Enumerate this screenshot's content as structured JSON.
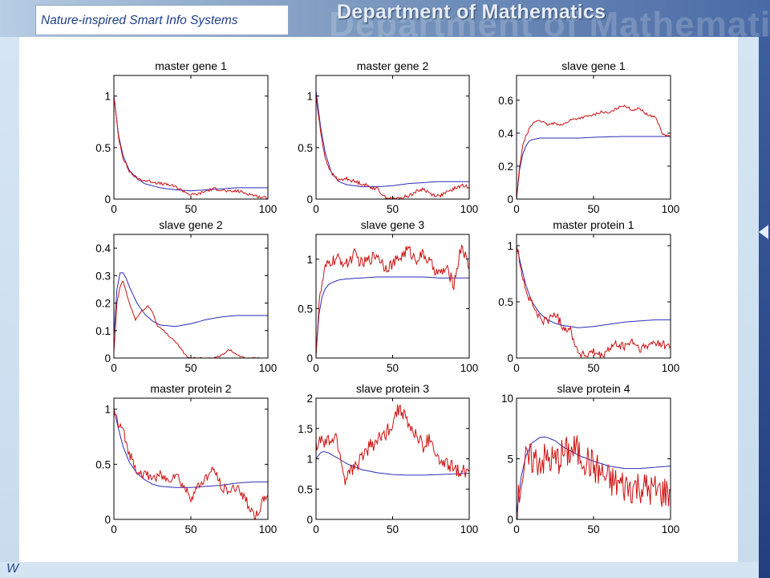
{
  "header": {
    "logo_text": "Nature-inspired Smart Info Systems",
    "department_title": "Department of Mathematics",
    "department_ghost_text": "Department of Mathematics"
  },
  "footer": {
    "fragment": "W"
  },
  "colors": {
    "simulation": "#cc1111",
    "model": "#2b2bb8",
    "axes": "#000000"
  },
  "nav": {
    "icon": "left-arrow-icon"
  },
  "chart_data": [
    {
      "type": "line",
      "title": "master gene 1",
      "xlim": [
        0,
        100
      ],
      "ylim": [
        0,
        1.2
      ],
      "xticks": [
        "0",
        "50",
        "100"
      ],
      "yticks": [
        [
          0,
          "0"
        ],
        [
          0.5,
          "0.5"
        ],
        [
          1,
          "1"
        ]
      ],
      "series": [
        {
          "color": "#2b2bb8",
          "x": [
            0,
            3,
            6,
            10,
            15,
            20,
            30,
            40,
            50,
            60,
            70,
            80,
            90,
            100
          ],
          "values": [
            1.0,
            0.62,
            0.42,
            0.28,
            0.2,
            0.15,
            0.11,
            0.09,
            0.08,
            0.09,
            0.1,
            0.11,
            0.11,
            0.11
          ]
        },
        {
          "color": "#cc1111",
          "x": [
            0,
            3,
            6,
            10,
            15,
            20,
            25,
            30,
            35,
            40,
            45,
            50,
            55,
            60,
            65,
            70,
            75,
            80,
            85,
            90,
            95,
            100
          ],
          "values": [
            1.0,
            0.6,
            0.4,
            0.27,
            0.2,
            0.18,
            0.17,
            0.15,
            0.14,
            0.12,
            0.08,
            0.04,
            0.05,
            0.08,
            0.1,
            0.09,
            0.07,
            0.08,
            0.06,
            0.04,
            0.02,
            0.01
          ],
          "noise": 0.01
        }
      ]
    },
    {
      "type": "line",
      "title": "master gene 2",
      "xlim": [
        0,
        100
      ],
      "ylim": [
        0,
        1.2
      ],
      "xticks": [
        "0",
        "50",
        "100"
      ],
      "yticks": [
        [
          0,
          "0"
        ],
        [
          0.5,
          "0.5"
        ],
        [
          1,
          "1"
        ]
      ],
      "series": [
        {
          "color": "#2b2bb8",
          "x": [
            0,
            3,
            6,
            10,
            15,
            20,
            30,
            40,
            50,
            60,
            70,
            80,
            90,
            100
          ],
          "values": [
            1.05,
            0.7,
            0.45,
            0.26,
            0.17,
            0.14,
            0.12,
            0.12,
            0.13,
            0.15,
            0.16,
            0.17,
            0.17,
            0.17
          ]
        },
        {
          "color": "#cc1111",
          "x": [
            0,
            3,
            6,
            10,
            15,
            20,
            25,
            30,
            35,
            40,
            45,
            50,
            55,
            60,
            65,
            70,
            75,
            80,
            85,
            90,
            95,
            100
          ],
          "values": [
            1.0,
            0.65,
            0.4,
            0.25,
            0.18,
            0.2,
            0.17,
            0.15,
            0.12,
            0.1,
            0.02,
            0.0,
            0.01,
            0.03,
            0.07,
            0.1,
            0.05,
            0.03,
            0.06,
            0.1,
            0.13,
            0.12
          ],
          "noise": 0.012
        }
      ]
    },
    {
      "type": "line",
      "title": "slave gene 1",
      "xlim": [
        0,
        100
      ],
      "ylim": [
        0,
        0.75
      ],
      "xticks": [
        "0",
        "50",
        "100"
      ],
      "yticks": [
        [
          0,
          "0"
        ],
        [
          0.2,
          "0.2"
        ],
        [
          0.4,
          "0.4"
        ],
        [
          0.6,
          "0.6"
        ]
      ],
      "series": [
        {
          "color": "#2b2bb8",
          "x": [
            0,
            2,
            4,
            6,
            8,
            10,
            15,
            20,
            30,
            40,
            50,
            60,
            70,
            80,
            90,
            100
          ],
          "values": [
            0,
            0.18,
            0.27,
            0.32,
            0.35,
            0.36,
            0.37,
            0.37,
            0.37,
            0.37,
            0.375,
            0.378,
            0.38,
            0.38,
            0.38,
            0.38
          ]
        },
        {
          "color": "#cc1111",
          "x": [
            0,
            2,
            4,
            6,
            8,
            10,
            12,
            15,
            20,
            25,
            30,
            35,
            40,
            45,
            50,
            55,
            60,
            65,
            70,
            75,
            80,
            85,
            90,
            93,
            95,
            100
          ],
          "values": [
            0,
            0.2,
            0.32,
            0.38,
            0.42,
            0.45,
            0.47,
            0.48,
            0.45,
            0.46,
            0.45,
            0.48,
            0.49,
            0.5,
            0.51,
            0.53,
            0.52,
            0.55,
            0.57,
            0.54,
            0.55,
            0.51,
            0.5,
            0.44,
            0.39,
            0.38
          ],
          "noise": 0.008
        }
      ]
    },
    {
      "type": "line",
      "title": "slave gene 2",
      "xlim": [
        0,
        100
      ],
      "ylim": [
        0,
        0.45
      ],
      "xticks": [
        "0",
        "50",
        "100"
      ],
      "yticks": [
        [
          0,
          "0"
        ],
        [
          0.1,
          "0.1"
        ],
        [
          0.2,
          "0.2"
        ],
        [
          0.3,
          "0.3"
        ],
        [
          0.4,
          "0.4"
        ]
      ],
      "series": [
        {
          "color": "#2b2bb8",
          "x": [
            0,
            2,
            4,
            6,
            8,
            10,
            15,
            20,
            25,
            30,
            40,
            50,
            60,
            70,
            80,
            90,
            100
          ],
          "values": [
            0.08,
            0.25,
            0.31,
            0.31,
            0.29,
            0.26,
            0.2,
            0.16,
            0.135,
            0.12,
            0.115,
            0.125,
            0.14,
            0.15,
            0.155,
            0.155,
            0.155
          ]
        },
        {
          "color": "#cc1111",
          "x": [
            0,
            2,
            4,
            6,
            8,
            10,
            14,
            18,
            22,
            25,
            28,
            32,
            36,
            40,
            44,
            48,
            50,
            55,
            60,
            65,
            70,
            72,
            75,
            78,
            80,
            85,
            90,
            95,
            100
          ],
          "values": [
            0.02,
            0.2,
            0.26,
            0.28,
            0.24,
            0.2,
            0.14,
            0.17,
            0.19,
            0.17,
            0.12,
            0.1,
            0.08,
            0.06,
            0.03,
            0.0,
            0.0,
            0.0,
            0.0,
            0.0,
            0.01,
            0.02,
            0.03,
            0.02,
            0.01,
            0.0,
            0.0,
            0.0,
            0.0
          ],
          "noise": 0.006
        }
      ]
    },
    {
      "type": "line",
      "title": "slave gene 3",
      "xlim": [
        0,
        100
      ],
      "ylim": [
        0,
        1.25
      ],
      "xticks": [
        "0",
        "50",
        "100"
      ],
      "yticks": [
        [
          0,
          "0"
        ],
        [
          0.5,
          "0.5"
        ],
        [
          1,
          "1"
        ]
      ],
      "series": [
        {
          "color": "#2b2bb8",
          "x": [
            0,
            2,
            4,
            6,
            8,
            10,
            15,
            20,
            30,
            40,
            50,
            60,
            70,
            80,
            90,
            100
          ],
          "values": [
            0.05,
            0.45,
            0.62,
            0.7,
            0.74,
            0.76,
            0.79,
            0.8,
            0.81,
            0.82,
            0.82,
            0.82,
            0.82,
            0.81,
            0.81,
            0.81
          ]
        },
        {
          "color": "#cc1111",
          "x": [
            0,
            2,
            4,
            6,
            8,
            10,
            15,
            20,
            25,
            30,
            35,
            40,
            45,
            50,
            55,
            60,
            65,
            70,
            75,
            80,
            85,
            90,
            95,
            98,
            100
          ],
          "values": [
            0.05,
            0.55,
            0.75,
            0.9,
            0.95,
            0.98,
            1.0,
            0.95,
            1.05,
            0.95,
            1.0,
            1.05,
            0.92,
            0.95,
            1.02,
            1.1,
            1.0,
            1.05,
            0.95,
            0.85,
            0.9,
            0.75,
            1.15,
            1.0,
            0.9
          ],
          "noise": 0.04
        }
      ]
    },
    {
      "type": "line",
      "title": "master protein 1",
      "xlim": [
        0,
        100
      ],
      "ylim": [
        0,
        1.1
      ],
      "xticks": [
        "0",
        "50",
        "100"
      ],
      "yticks": [
        [
          0,
          "0"
        ],
        [
          0.5,
          "0.5"
        ],
        [
          1,
          "1"
        ]
      ],
      "series": [
        {
          "color": "#2b2bb8",
          "x": [
            0,
            3,
            6,
            10,
            15,
            20,
            25,
            30,
            40,
            50,
            60,
            70,
            80,
            90,
            100
          ],
          "values": [
            1.0,
            0.82,
            0.65,
            0.5,
            0.4,
            0.34,
            0.31,
            0.29,
            0.27,
            0.28,
            0.3,
            0.32,
            0.33,
            0.34,
            0.34
          ]
        },
        {
          "color": "#cc1111",
          "x": [
            0,
            3,
            6,
            10,
            15,
            20,
            25,
            30,
            35,
            40,
            45,
            50,
            55,
            60,
            65,
            70,
            75,
            80,
            85,
            90,
            95,
            100
          ],
          "values": [
            1.0,
            0.8,
            0.6,
            0.48,
            0.35,
            0.33,
            0.4,
            0.28,
            0.25,
            0.05,
            0.02,
            0.05,
            0.01,
            0.08,
            0.12,
            0.1,
            0.15,
            0.08,
            0.1,
            0.15,
            0.12,
            0.1
          ],
          "noise": 0.03
        }
      ]
    },
    {
      "type": "line",
      "title": "master protein 2",
      "xlim": [
        0,
        100
      ],
      "ylim": [
        0,
        1.1
      ],
      "xticks": [
        "0",
        "50",
        "100"
      ],
      "yticks": [
        [
          0,
          "0"
        ],
        [
          0.5,
          "0.5"
        ],
        [
          1,
          "1"
        ]
      ],
      "series": [
        {
          "color": "#2b2bb8",
          "x": [
            0,
            3,
            6,
            10,
            15,
            20,
            25,
            30,
            40,
            50,
            60,
            70,
            80,
            90,
            100
          ],
          "values": [
            1.0,
            0.82,
            0.66,
            0.52,
            0.42,
            0.36,
            0.32,
            0.3,
            0.29,
            0.29,
            0.3,
            0.31,
            0.33,
            0.34,
            0.34
          ]
        },
        {
          "color": "#cc1111",
          "x": [
            0,
            3,
            6,
            10,
            15,
            20,
            25,
            30,
            35,
            40,
            45,
            50,
            55,
            60,
            65,
            70,
            75,
            80,
            85,
            90,
            92,
            95,
            98,
            100
          ],
          "values": [
            1.0,
            0.85,
            0.8,
            0.6,
            0.45,
            0.4,
            0.38,
            0.4,
            0.35,
            0.42,
            0.3,
            0.2,
            0.3,
            0.38,
            0.45,
            0.3,
            0.25,
            0.3,
            0.2,
            0.05,
            0.02,
            0.1,
            0.2,
            0.22
          ],
          "noise": 0.035
        }
      ]
    },
    {
      "type": "line",
      "title": "slave protein 3",
      "xlim": [
        0,
        100
      ],
      "ylim": [
        0,
        2.0
      ],
      "xticks": [
        "0",
        "50",
        "100"
      ],
      "yticks": [
        [
          0,
          "0"
        ],
        [
          0.5,
          "0.5"
        ],
        [
          1,
          "1"
        ],
        [
          1.5,
          "1.5"
        ],
        [
          2,
          "2"
        ]
      ],
      "series": [
        {
          "color": "#2b2bb8",
          "x": [
            0,
            3,
            5,
            8,
            10,
            15,
            20,
            30,
            40,
            50,
            60,
            70,
            80,
            90,
            100
          ],
          "values": [
            1.0,
            1.1,
            1.12,
            1.1,
            1.07,
            1.0,
            0.92,
            0.82,
            0.77,
            0.74,
            0.73,
            0.73,
            0.74,
            0.75,
            0.76
          ]
        },
        {
          "color": "#cc1111",
          "x": [
            0,
            3,
            6,
            10,
            13,
            15,
            17,
            19,
            22,
            25,
            30,
            35,
            40,
            45,
            50,
            52,
            55,
            58,
            60,
            65,
            70,
            75,
            78,
            80,
            85,
            90,
            95,
            100
          ],
          "values": [
            1.2,
            1.3,
            1.25,
            1.3,
            1.35,
            1.15,
            0.9,
            0.6,
            0.85,
            0.8,
            1.05,
            1.2,
            1.3,
            1.4,
            1.6,
            1.75,
            1.85,
            1.7,
            1.55,
            1.4,
            1.2,
            1.35,
            1.1,
            0.95,
            0.9,
            0.85,
            0.8,
            0.8
          ],
          "noise": 0.05
        }
      ]
    },
    {
      "type": "line",
      "title": "slave protein 4",
      "xlim": [
        0,
        100
      ],
      "ylim": [
        0,
        10
      ],
      "xticks": [
        "0",
        "50",
        "100"
      ],
      "yticks": [
        [
          0,
          "0"
        ],
        [
          5,
          "5"
        ],
        [
          10,
          "10"
        ]
      ],
      "series": [
        {
          "color": "#2b2bb8",
          "x": [
            0,
            3,
            6,
            10,
            15,
            18,
            20,
            25,
            30,
            40,
            50,
            60,
            70,
            80,
            90,
            100
          ],
          "values": [
            0.5,
            3.5,
            5.2,
            6.3,
            6.75,
            6.8,
            6.75,
            6.5,
            6.0,
            5.3,
            4.8,
            4.4,
            4.2,
            4.2,
            4.3,
            4.4
          ]
        },
        {
          "color": "#cc1111",
          "x": [
            0,
            3,
            6,
            10,
            15,
            20,
            25,
            30,
            35,
            38,
            40,
            45,
            50,
            55,
            60,
            65,
            70,
            75,
            80,
            85,
            90,
            95,
            100
          ],
          "values": [
            0.5,
            3.3,
            4.7,
            5.0,
            4.9,
            5.0,
            4.8,
            5.4,
            5.6,
            5.8,
            5.5,
            5.0,
            4.4,
            3.8,
            3.2,
            3.0,
            2.8,
            2.7,
            2.8,
            2.5,
            2.4,
            2.3,
            2.3
          ],
          "noise": 0.12
        }
      ]
    }
  ]
}
